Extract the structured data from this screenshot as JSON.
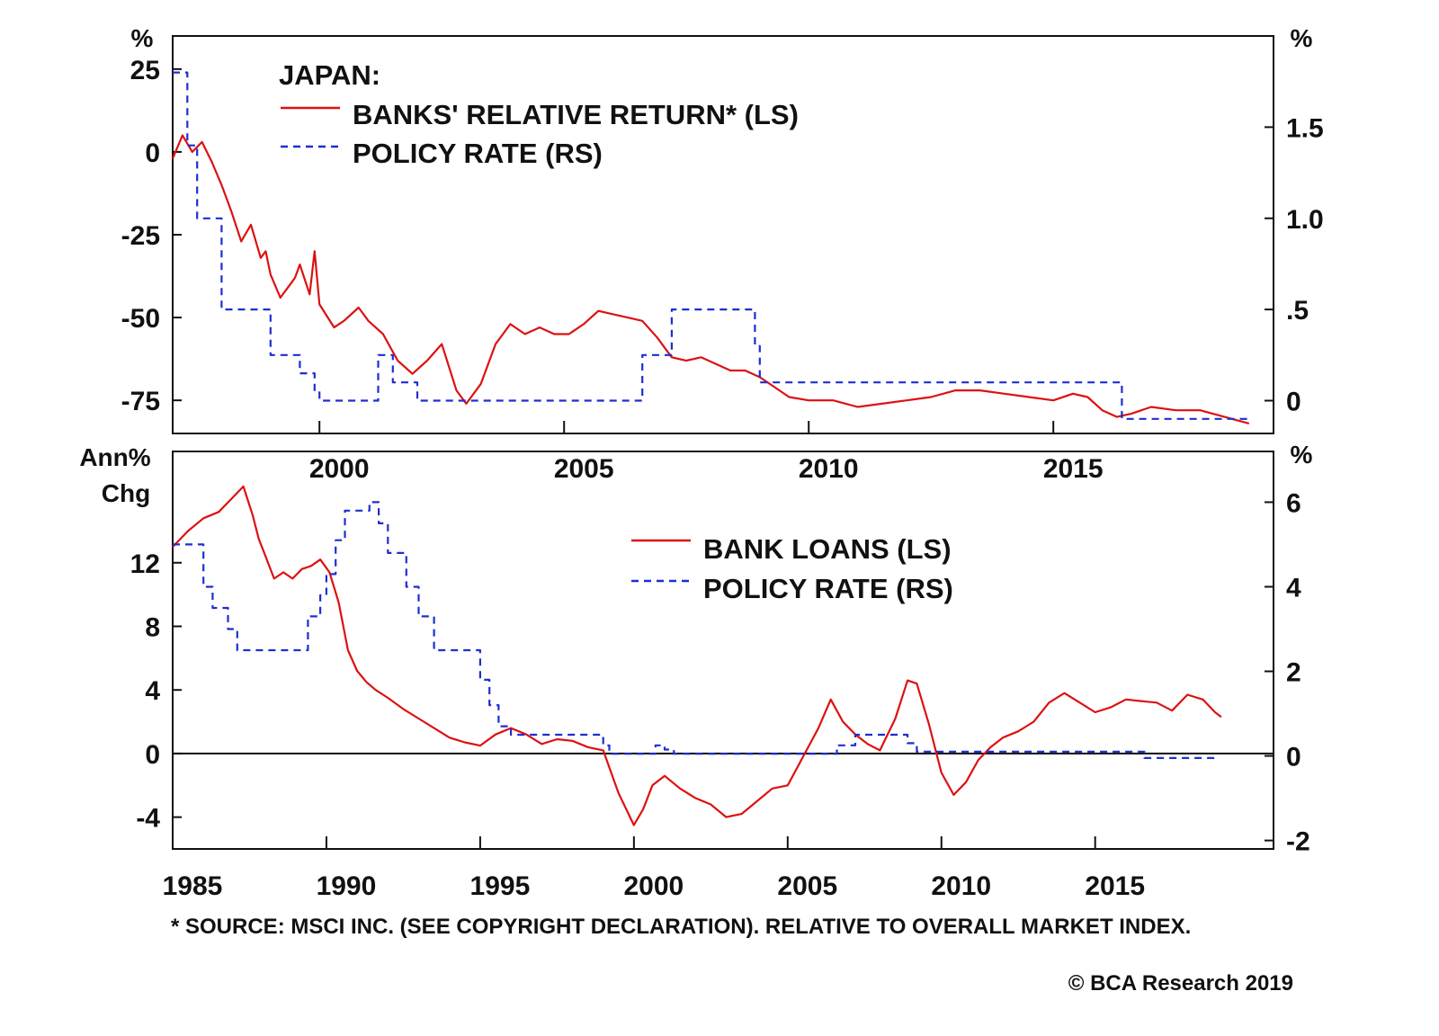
{
  "chart_data": [
    {
      "type": "line",
      "title": "JAPAN:",
      "x_range": [
        1997.0,
        2019.5
      ],
      "x_ticks": [
        "2000",
        "2005",
        "2010",
        "2015"
      ],
      "left_axis": {
        "unit": "%",
        "ylim": [
          -85,
          35
        ],
        "ticks": [
          "25",
          "0",
          "-25",
          "-50",
          "-75"
        ]
      },
      "right_axis": {
        "unit": "%",
        "ylim": [
          -0.18,
          2.0
        ],
        "ticks": [
          "1.5",
          "1.0",
          ".5",
          "0"
        ]
      },
      "legend": [
        "BANKS' RELATIVE RETURN* (LS)",
        "POLICY RATE (RS)"
      ],
      "series": [
        {
          "name": "BANKS' RELATIVE RETURN* (LS)",
          "axis": "left",
          "color": "#dd1111",
          "style": "solid",
          "x": [
            1997.0,
            1997.2,
            1997.4,
            1997.6,
            1997.8,
            1998.0,
            1998.2,
            1998.4,
            1998.6,
            1998.8,
            1998.9,
            1999.0,
            1999.2,
            1999.4,
            1999.5,
            1999.6,
            1999.8,
            1999.9,
            2000.0,
            2000.3,
            2000.5,
            2000.8,
            2001.0,
            2001.3,
            2001.6,
            2001.9,
            2002.2,
            2002.5,
            2002.8,
            2003.0,
            2003.3,
            2003.6,
            2003.9,
            2004.2,
            2004.5,
            2004.8,
            2005.1,
            2005.4,
            2005.7,
            2006.0,
            2006.3,
            2006.6,
            2006.9,
            2007.2,
            2007.5,
            2007.8,
            2008.1,
            2008.4,
            2008.7,
            2009.0,
            2009.3,
            2009.6,
            2010.0,
            2010.5,
            2011.0,
            2011.5,
            2012.0,
            2012.5,
            2013.0,
            2013.5,
            2014.0,
            2014.5,
            2015.0,
            2015.4,
            2015.7,
            2016.0,
            2016.3,
            2016.6,
            2017.0,
            2017.5,
            2018.0,
            2018.5,
            2019.0
          ],
          "y": [
            -2,
            5,
            0,
            3,
            -3,
            -10,
            -18,
            -27,
            -22,
            -32,
            -30,
            -37,
            -44,
            -40,
            -38,
            -34,
            -43,
            -30,
            -46,
            -53,
            -51,
            -47,
            -51,
            -55,
            -63,
            -67,
            -63,
            -58,
            -72,
            -76,
            -70,
            -58,
            -52,
            -55,
            -53,
            -55,
            -55,
            -52,
            -48,
            -49,
            -50,
            -51,
            -56,
            -62,
            -63,
            -62,
            -64,
            -66,
            -66,
            -68,
            -71,
            -74,
            -75,
            -75,
            -77,
            -76,
            -75,
            -74,
            -72,
            -72,
            -73,
            -74,
            -75,
            -73,
            -74,
            -78,
            -80,
            -79,
            -77,
            -78,
            -78,
            -80,
            -82
          ]
        },
        {
          "name": "POLICY RATE (RS)",
          "axis": "right",
          "color": "#1d2fd0",
          "style": "dashed",
          "x": [
            1997.0,
            1997.3,
            1997.5,
            1998.0,
            1998.5,
            1998.9,
            1999.0,
            1999.6,
            1999.9,
            2000.0,
            2000.5,
            2001.0,
            2001.2,
            2001.5,
            2002.0,
            2005.0,
            2006.0,
            2006.6,
            2007.0,
            2007.2,
            2008.0,
            2008.6,
            2008.9,
            2009.0,
            2009.9,
            2014.0,
            2015.0,
            2016.0,
            2016.4,
            2017.0,
            2018.0,
            2019.0
          ],
          "y": [
            1.8,
            1.4,
            1.0,
            0.5,
            0.5,
            0.5,
            0.25,
            0.15,
            0.05,
            0.0,
            0.0,
            0.0,
            0.25,
            0.1,
            0.0,
            0.0,
            0.0,
            0.25,
            0.25,
            0.5,
            0.5,
            0.5,
            0.3,
            0.1,
            0.1,
            0.1,
            0.1,
            0.1,
            -0.1,
            -0.1,
            -0.1,
            -0.1
          ]
        }
      ]
    },
    {
      "type": "line",
      "x_range": [
        1985.0,
        2020.8
      ],
      "x_ticks": [
        "1985",
        "1990",
        "1995",
        "2000",
        "2005",
        "2010",
        "2015"
      ],
      "left_axis": {
        "unit": "Ann% Chg",
        "ylim": [
          -6,
          19
        ],
        "ticks": [
          "12",
          "8",
          "4",
          "0",
          "-4"
        ]
      },
      "right_axis": {
        "unit": "%",
        "ylim": [
          -2.2,
          7.2
        ],
        "ticks": [
          "6",
          "4",
          "2",
          "0",
          "-2"
        ]
      },
      "legend": [
        "BANK LOANS (LS)",
        "POLICY RATE (RS)"
      ],
      "series": [
        {
          "name": "BANK LOANS (LS)",
          "axis": "left",
          "color": "#dd1111",
          "style": "solid",
          "x": [
            1985.0,
            1985.5,
            1986.0,
            1986.5,
            1987.0,
            1987.3,
            1987.6,
            1987.8,
            1988.0,
            1988.3,
            1988.6,
            1988.9,
            1989.2,
            1989.5,
            1989.8,
            1990.1,
            1990.4,
            1990.7,
            1991.0,
            1991.3,
            1991.6,
            1992.0,
            1992.5,
            1993.0,
            1993.5,
            1994.0,
            1994.5,
            1995.0,
            1995.5,
            1996.0,
            1996.5,
            1997.0,
            1997.5,
            1998.0,
            1998.5,
            1999.0,
            1999.5,
            2000.0,
            2000.3,
            2000.6,
            2001.0,
            2001.5,
            2002.0,
            2002.5,
            2003.0,
            2003.5,
            2004.0,
            2004.5,
            2005.0,
            2005.5,
            2006.0,
            2006.4,
            2006.8,
            2007.2,
            2007.6,
            2008.0,
            2008.5,
            2008.9,
            2009.2,
            2009.6,
            2010.0,
            2010.4,
            2010.8,
            2011.2,
            2011.6,
            2012.0,
            2012.5,
            2013.0,
            2013.5,
            2014.0,
            2014.5,
            2015.0,
            2015.5,
            2016.0,
            2016.5,
            2017.0,
            2017.5,
            2018.0,
            2018.5,
            2018.9,
            2019.1
          ],
          "y": [
            13.0,
            14.0,
            14.8,
            15.2,
            16.2,
            16.8,
            15.0,
            13.5,
            12.5,
            11.0,
            11.4,
            11.0,
            11.6,
            11.8,
            12.2,
            11.4,
            9.5,
            6.5,
            5.2,
            4.5,
            4.0,
            3.5,
            2.8,
            2.2,
            1.6,
            1.0,
            0.7,
            0.5,
            1.2,
            1.6,
            1.2,
            0.6,
            0.9,
            0.8,
            0.4,
            0.2,
            -2.5,
            -4.5,
            -3.5,
            -2.0,
            -1.4,
            -2.2,
            -2.8,
            -3.2,
            -4.0,
            -3.8,
            -3.0,
            -2.2,
            -2.0,
            -0.2,
            1.6,
            3.4,
            2.0,
            1.2,
            0.6,
            0.2,
            2.2,
            4.6,
            4.4,
            1.8,
            -1.2,
            -2.6,
            -1.8,
            -0.4,
            0.4,
            1.0,
            1.4,
            2.0,
            3.2,
            3.8,
            3.2,
            2.6,
            2.9,
            3.4,
            3.3,
            3.2,
            2.7,
            3.7,
            3.4,
            2.6,
            2.3
          ]
        },
        {
          "name": "POLICY RATE (RS)",
          "axis": "right",
          "color": "#1d2fd0",
          "style": "dashed",
          "x": [
            1985.0,
            1985.6,
            1986.0,
            1986.3,
            1986.8,
            1987.1,
            1988.0,
            1989.0,
            1989.4,
            1989.8,
            1990.0,
            1990.3,
            1990.6,
            1991.4,
            1991.7,
            1992.0,
            1992.6,
            1993.0,
            1993.5,
            1995.0,
            1995.3,
            1995.6,
            1996.0,
            1998.0,
            1998.5,
            1999.0,
            1999.2,
            2000.3,
            2000.7,
            2001.0,
            2001.3,
            2006.0,
            2006.6,
            2007.0,
            2007.2,
            2008.6,
            2008.9,
            2009.2,
            2016.3,
            2016.6,
            2019.0
          ],
          "y": [
            5.0,
            5.0,
            4.0,
            3.5,
            3.0,
            2.5,
            2.5,
            2.5,
            3.3,
            3.8,
            4.3,
            5.1,
            5.8,
            6.0,
            5.5,
            4.8,
            4.0,
            3.3,
            2.5,
            1.8,
            1.2,
            0.7,
            0.5,
            0.5,
            0.5,
            0.25,
            0.05,
            0.05,
            0.25,
            0.15,
            0.05,
            0.05,
            0.25,
            0.25,
            0.5,
            0.5,
            0.3,
            0.1,
            0.1,
            -0.05,
            -0.05
          ]
        }
      ]
    }
  ],
  "footnote": "* SOURCE: MSCI INC. (SEE COPYRIGHT DECLARATION). RELATIVE TO OVERALL MARKET INDEX.",
  "copyright": "© BCA Research 2019"
}
